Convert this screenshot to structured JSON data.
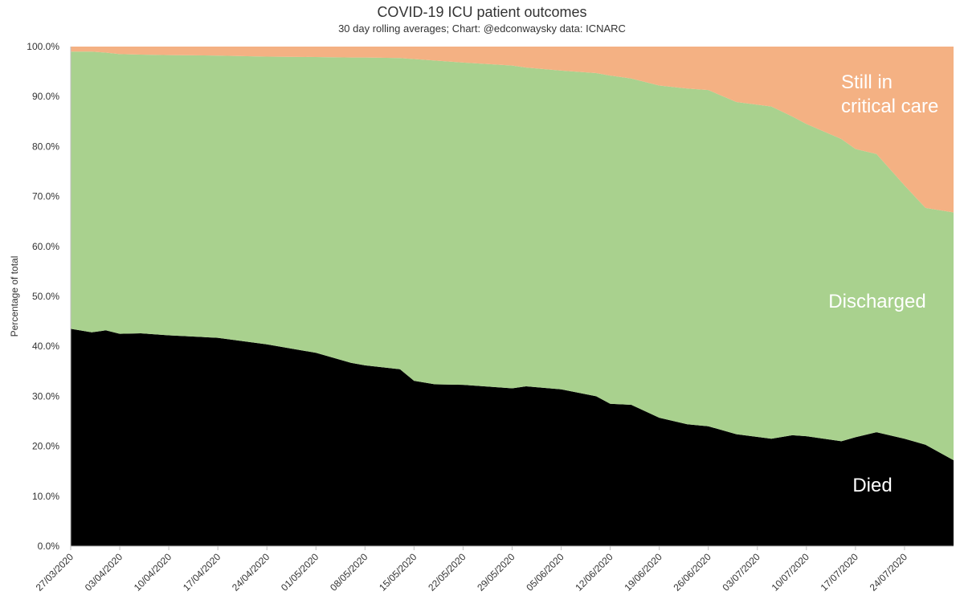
{
  "chart_data": {
    "type": "area",
    "stacked": true,
    "title": "COVID-19 ICU patient outcomes",
    "subtitle": "30 day rolling averages; Chart: @edconwaysky data: ICNARC",
    "ylabel": "Percentage of total",
    "xlabel": "",
    "ylim": [
      0,
      100
    ],
    "yticks": [
      "0.0%",
      "10.0%",
      "20.0%",
      "30.0%",
      "40.0%",
      "50.0%",
      "60.0%",
      "70.0%",
      "80.0%",
      "90.0%",
      "100.0%"
    ],
    "x_start": "27/03/2020",
    "x_end_day_index": 126,
    "xtick_labels": [
      "27/03/2020",
      "03/04/2020",
      "10/04/2020",
      "17/04/2020",
      "24/04/2020",
      "01/05/2020",
      "08/05/2020",
      "15/05/2020",
      "22/05/2020",
      "29/05/2020",
      "05/06/2020",
      "12/06/2020",
      "19/06/2020",
      "26/06/2020",
      "03/07/2020",
      "10/07/2020",
      "17/07/2020",
      "24/07/2020"
    ],
    "xtick_day_index": [
      0,
      7,
      14,
      21,
      28,
      35,
      42,
      49,
      56,
      63,
      70,
      77,
      84,
      91,
      98,
      105,
      112,
      119
    ],
    "series": [
      {
        "name": "Died",
        "color": "#000000",
        "x": [
          0,
          3,
          5,
          7,
          10,
          14,
          21,
          28,
          35,
          40,
          42,
          47,
          49,
          52,
          56,
          63,
          65,
          70,
          75,
          77,
          80,
          84,
          88,
          91,
          95,
          100,
          103,
          105,
          110,
          112,
          115,
          119,
          122,
          126
        ],
        "values": [
          43.5,
          42.8,
          43.2,
          42.5,
          42.6,
          42.2,
          41.7,
          40.4,
          38.7,
          36.7,
          36.2,
          35.4,
          33.1,
          32.4,
          32.3,
          31.6,
          32.0,
          31.4,
          30.0,
          28.5,
          28.3,
          25.7,
          24.4,
          24.0,
          22.4,
          21.5,
          22.2,
          22.0,
          21.0,
          21.8,
          22.8,
          21.5,
          20.3,
          17.2
        ]
      },
      {
        "name": "Discharged",
        "color": "#a9d18e",
        "x": [
          0,
          3,
          5,
          7,
          10,
          14,
          21,
          28,
          35,
          40,
          42,
          47,
          49,
          52,
          56,
          63,
          65,
          70,
          75,
          77,
          80,
          84,
          88,
          91,
          95,
          100,
          103,
          105,
          110,
          112,
          115,
          119,
          122,
          126
        ],
        "values": [
          55.5,
          56.2,
          55.6,
          56.0,
          55.8,
          56.1,
          56.5,
          57.6,
          59.2,
          61.1,
          61.6,
          62.3,
          64.4,
          64.8,
          64.5,
          64.6,
          63.8,
          63.8,
          64.7,
          65.7,
          65.3,
          66.5,
          67.2,
          67.3,
          66.5,
          66.5,
          63.8,
          62.5,
          60.5,
          57.7,
          55.7,
          50.7,
          47.4,
          49.6
        ]
      },
      {
        "name": "Still in critical care",
        "color": "#f4b183",
        "x": [
          0,
          3,
          5,
          7,
          10,
          14,
          21,
          28,
          35,
          40,
          42,
          47,
          49,
          52,
          56,
          63,
          65,
          70,
          75,
          77,
          80,
          84,
          88,
          91,
          95,
          100,
          103,
          105,
          110,
          112,
          115,
          119,
          122,
          126
        ],
        "values": [
          1.0,
          1.0,
          1.2,
          1.5,
          1.6,
          1.7,
          1.8,
          2.0,
          2.1,
          2.2,
          2.2,
          2.3,
          2.5,
          2.8,
          3.2,
          3.8,
          4.2,
          4.8,
          5.3,
          5.8,
          6.4,
          7.8,
          8.4,
          8.7,
          11.1,
          12.0,
          14.0,
          15.5,
          18.5,
          20.5,
          21.5,
          27.8,
          32.3,
          33.2
        ]
      }
    ],
    "annotations": [
      {
        "id": "still",
        "lines": [
          "Still in",
          "critical care"
        ]
      },
      {
        "id": "discharged",
        "lines": [
          "Discharged"
        ]
      },
      {
        "id": "died",
        "lines": [
          "Died"
        ]
      }
    ]
  }
}
